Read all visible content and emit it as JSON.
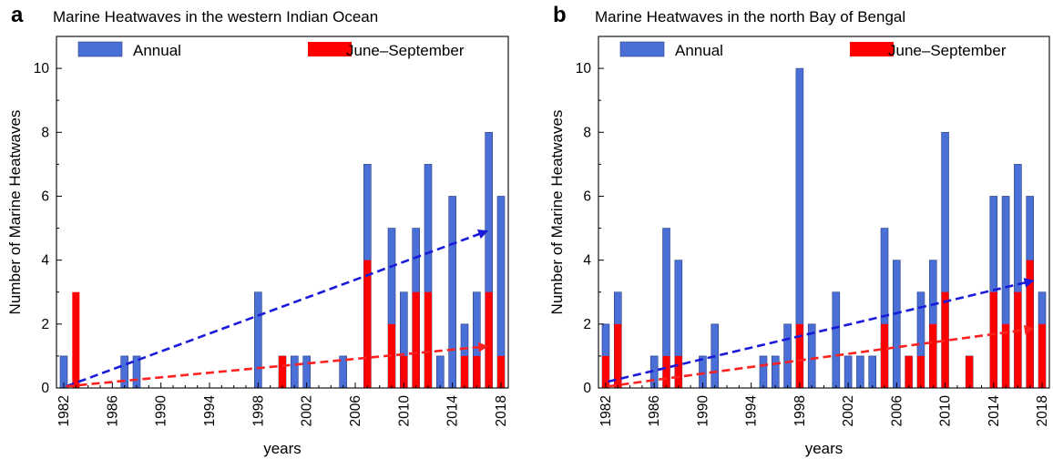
{
  "colors": {
    "annual": "#4a6fd6",
    "jjas": "#ff0000",
    "annual_trend": "#1a1adb",
    "jjas_trend": "#ff2020"
  },
  "chart_data": [
    {
      "type": "bar",
      "panel_label": "a",
      "title": "Marine Heatwaves in the western Indian Ocean",
      "xlabel": "years",
      "ylabel": "Number of Marine Heatwaves",
      "xlim": [
        1982,
        2018
      ],
      "ylim": [
        0,
        11
      ],
      "xticks": [
        "1982",
        "1986",
        "1990",
        "1994",
        "1998",
        "2002",
        "2006",
        "2010",
        "2014",
        "2018"
      ],
      "yticks": [
        "0",
        "2",
        "4",
        "6",
        "8",
        "10"
      ],
      "grid": false,
      "legend": [
        {
          "label": "Annual",
          "color": "#4a6fd6"
        },
        {
          "label": "June–September",
          "color": "#ff0000"
        }
      ],
      "series": [
        {
          "name": "Annual",
          "years": [
            1982,
            1987,
            1988,
            1998,
            2000,
            2001,
            2002,
            2005,
            2007,
            2009,
            2010,
            2011,
            2012,
            2013,
            2014,
            2015,
            2016,
            2017,
            2018
          ],
          "values": [
            1,
            1,
            1,
            3,
            1,
            1,
            1,
            1,
            7,
            5,
            3,
            5,
            7,
            1,
            6,
            2,
            3,
            8,
            6
          ]
        },
        {
          "name": "June–September",
          "years": [
            1983,
            2000,
            2007,
            2009,
            2010,
            2011,
            2012,
            2015,
            2016,
            2017,
            2018
          ],
          "values": [
            3,
            1,
            4,
            2,
            1,
            3,
            3,
            1,
            1,
            3,
            1
          ]
        }
      ],
      "trends": [
        {
          "series": "Annual",
          "x": [
            1982.2,
            2016.8
          ],
          "y": [
            0.05,
            4.9
          ]
        },
        {
          "series": "June–September",
          "x": [
            1982.2,
            2016.8
          ],
          "y": [
            0.05,
            1.3
          ]
        }
      ]
    },
    {
      "type": "bar",
      "panel_label": "b",
      "title": "Marine Heatwaves in the north Bay of Bengal",
      "xlabel": "years",
      "ylabel": "Number of Marine Heatwaves",
      "xlim": [
        1982,
        2018
      ],
      "ylim": [
        0,
        11
      ],
      "xticks": [
        "1982",
        "1986",
        "1990",
        "1994",
        "1998",
        "2002",
        "2006",
        "2010",
        "2014",
        "2018"
      ],
      "yticks": [
        "0",
        "2",
        "4",
        "6",
        "8",
        "10"
      ],
      "grid": false,
      "legend": [
        {
          "label": "Annual",
          "color": "#4a6fd6"
        },
        {
          "label": "June–September",
          "color": "#ff0000"
        }
      ],
      "series": [
        {
          "name": "Annual",
          "years": [
            1982,
            1983,
            1986,
            1987,
            1988,
            1990,
            1991,
            1995,
            1996,
            1997,
            1998,
            1999,
            2001,
            2002,
            2003,
            2004,
            2005,
            2006,
            2007,
            2008,
            2009,
            2010,
            2012,
            2014,
            2015,
            2016,
            2017,
            2018
          ],
          "values": [
            2,
            3,
            1,
            5,
            4,
            1,
            2,
            1,
            1,
            2,
            10,
            2,
            3,
            1,
            1,
            1,
            5,
            4,
            1,
            3,
            4,
            8,
            1,
            6,
            6,
            7,
            6,
            3
          ]
        },
        {
          "name": "June–September",
          "years": [
            1982,
            1983,
            1987,
            1988,
            1998,
            2005,
            2007,
            2008,
            2009,
            2010,
            2012,
            2014,
            2015,
            2016,
            2017,
            2018
          ],
          "values": [
            1,
            2,
            1,
            1,
            2,
            2,
            1,
            1,
            2,
            3,
            1,
            3,
            2,
            3,
            4,
            2
          ]
        }
      ],
      "trends": [
        {
          "series": "Annual",
          "x": [
            1982.2,
            2017.2
          ],
          "y": [
            0.2,
            3.35
          ]
        },
        {
          "series": "June–September",
          "x": [
            1982.2,
            2017.2
          ],
          "y": [
            0.05,
            1.85
          ]
        }
      ]
    }
  ]
}
